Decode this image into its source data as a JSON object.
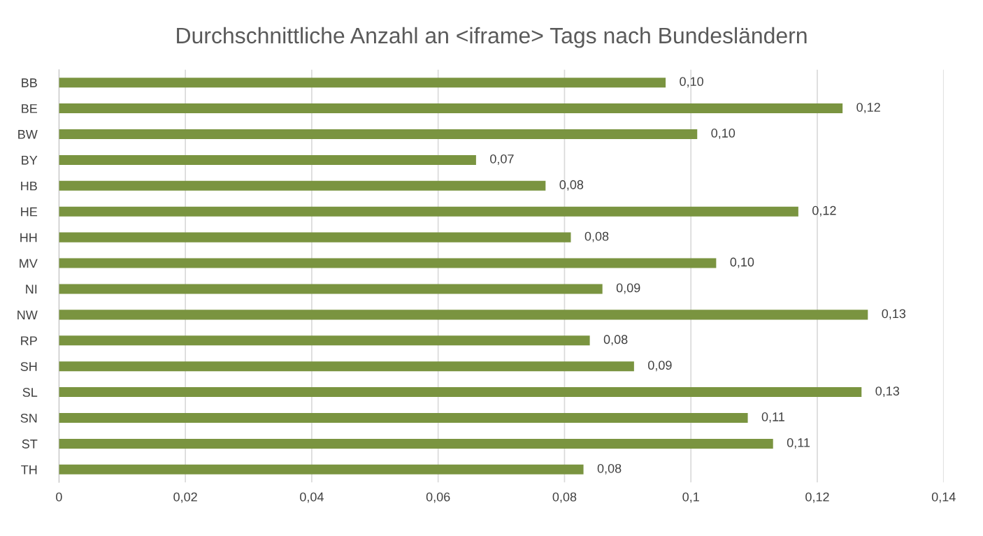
{
  "chart_data": {
    "type": "bar",
    "orientation": "horizontal",
    "title": "Durchschnittliche Anzahl an <iframe> Tags nach Bundesländern",
    "categories": [
      "BB",
      "BE",
      "BW",
      "BY",
      "HB",
      "HE",
      "HH",
      "MV",
      "NI",
      "NW",
      "RP",
      "SH",
      "SL",
      "SN",
      "ST",
      "TH"
    ],
    "values": [
      0.096,
      0.124,
      0.101,
      0.066,
      0.077,
      0.117,
      0.081,
      0.104,
      0.086,
      0.128,
      0.084,
      0.091,
      0.127,
      0.109,
      0.113,
      0.083
    ],
    "value_labels": [
      "0,10",
      "0,12",
      "0,10",
      "0,07",
      "0,08",
      "0,12",
      "0,08",
      "0,10",
      "0,09",
      "0,13",
      "0,08",
      "0,09",
      "0,13",
      "0,11",
      "0,11",
      "0,08"
    ],
    "color": "#7a9440",
    "xlim": [
      0,
      0.14
    ],
    "xticks": [
      0,
      {
        "value": 0.02,
        "label": "0,02"
      },
      {
        "value": 0.04,
        "label": "0,04"
      },
      {
        "value": 0.06,
        "label": "0,06"
      },
      {
        "value": 0.08,
        "label": "0,08"
      },
      {
        "value": 0.1,
        "label": "0,1"
      },
      {
        "value": 0.12,
        "label": "0,12"
      },
      {
        "value": 0.14,
        "label": "0,14"
      }
    ],
    "grid": "x",
    "legend": false
  }
}
